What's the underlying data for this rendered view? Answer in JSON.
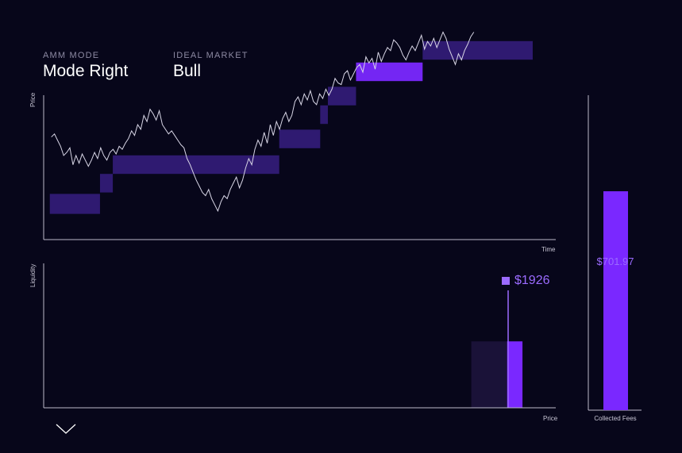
{
  "header": {
    "amm_mode_caption": "AMM MODE",
    "amm_mode_value": "Mode Right",
    "ideal_market_caption": "IDEAL MARKET",
    "ideal_market_value": "Bull"
  },
  "colors": {
    "background": "#07061a",
    "price_line": "#d8d6e6",
    "range_band": "#3a1f87",
    "range_band_active": "#7a28ff",
    "liquidity_bar": "#7a28ff",
    "liquidity_shadow": "#1a1238",
    "fee_bar": "#7a28ff",
    "accent_text": "#9b6bff"
  },
  "chart_data": [
    {
      "type": "line",
      "title": "",
      "xlabel": "Time",
      "ylabel": "Price",
      "grid": false,
      "price_series": [
        0.48,
        0.5,
        0.46,
        0.42,
        0.36,
        0.38,
        0.41,
        0.3,
        0.36,
        0.31,
        0.37,
        0.33,
        0.29,
        0.33,
        0.38,
        0.34,
        0.41,
        0.36,
        0.33,
        0.38,
        0.4,
        0.37,
        0.42,
        0.4,
        0.44,
        0.47,
        0.52,
        0.49,
        0.56,
        0.53,
        0.62,
        0.58,
        0.66,
        0.63,
        0.59,
        0.65,
        0.56,
        0.53,
        0.5,
        0.52,
        0.49,
        0.46,
        0.43,
        0.41,
        0.34,
        0.3,
        0.25,
        0.2,
        0.16,
        0.12,
        0.1,
        0.14,
        0.08,
        0.04,
        0.0,
        0.06,
        0.1,
        0.08,
        0.14,
        0.18,
        0.22,
        0.15,
        0.2,
        0.28,
        0.34,
        0.3,
        0.4,
        0.46,
        0.42,
        0.51,
        0.44,
        0.56,
        0.49,
        0.58,
        0.53,
        0.6,
        0.64,
        0.58,
        0.62,
        0.71,
        0.74,
        0.69,
        0.76,
        0.72,
        0.78,
        0.71,
        0.69,
        0.76,
        0.73,
        0.79,
        0.75,
        0.79,
        0.86,
        0.83,
        0.82,
        0.89,
        0.91,
        0.85,
        0.89,
        0.93,
        0.95,
        0.9,
        1.0,
        0.96,
        0.99,
        0.92,
        1.03,
        0.97,
        1.02,
        1.06,
        1.04,
        1.11,
        1.09,
        1.06,
        1.01,
        0.98,
        1.03,
        1.07,
        1.04,
        1.09,
        1.14,
        1.05,
        1.1,
        1.07,
        1.12,
        1.06,
        1.11,
        1.16,
        1.12,
        1.05,
        1.0,
        0.95,
        1.02,
        0.98,
        1.04,
        1.08,
        1.13,
        1.16
      ],
      "range_bands": [
        {
          "start": 0.012,
          "end": 0.11,
          "low": 0.18,
          "high": 0.32
        },
        {
          "start": 0.11,
          "end": 0.135,
          "low": 0.33,
          "high": 0.46
        },
        {
          "start": 0.135,
          "end": 0.46,
          "low": 0.46,
          "high": 0.59
        },
        {
          "start": 0.46,
          "end": 0.54,
          "low": 0.64,
          "high": 0.77
        },
        {
          "start": 0.54,
          "end": 0.555,
          "low": 0.81,
          "high": 0.94
        },
        {
          "start": 0.555,
          "end": 0.61,
          "low": 0.94,
          "high": 1.07
        },
        {
          "start": 0.61,
          "end": 0.74,
          "low": 1.11,
          "high": 1.24
        },
        {
          "start": 0.74,
          "end": 0.955,
          "low": 1.26,
          "high": 1.39
        }
      ],
      "active_band_index": 6
    },
    {
      "type": "bar",
      "title": "",
      "xlabel": "Price",
      "ylabel": "Liquidity",
      "current_price_label": "$1926",
      "bars": [
        {
          "name": "inactive",
          "start": 0.835,
          "end": 0.905,
          "value": 0.46
        },
        {
          "name": "active",
          "start": 0.905,
          "end": 0.935,
          "value": 0.46
        }
      ],
      "current_price_position": 0.907
    },
    {
      "type": "bar",
      "title": "",
      "categories": [
        "Collected Fees"
      ],
      "values": [
        701.97
      ],
      "data_labels": [
        "$701.97"
      ],
      "ylim": [
        0,
        1010
      ]
    }
  ]
}
